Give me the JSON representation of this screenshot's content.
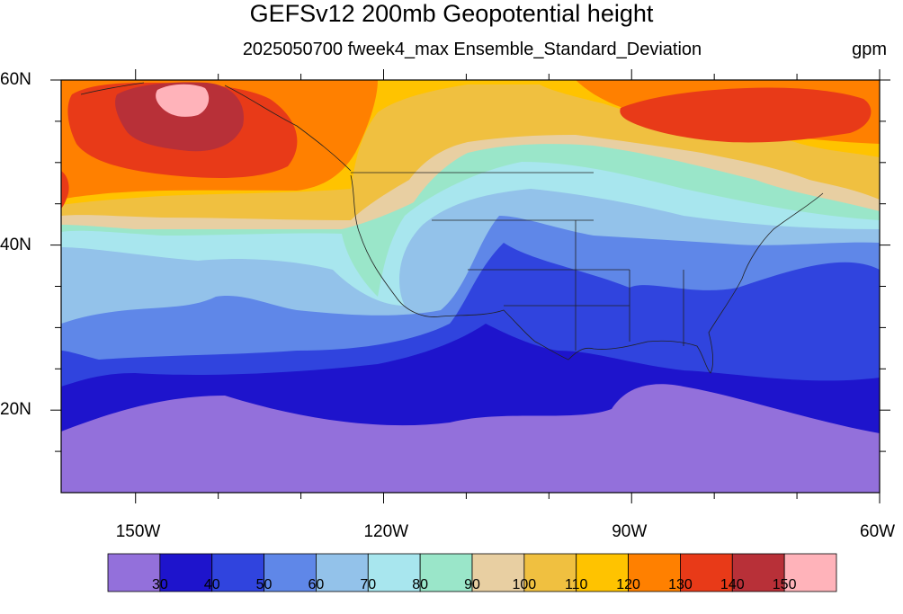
{
  "title": "GEFSv12 200mb Geopotential height",
  "subtitle": "2025050700 fweek4_max Ensemble_Standard_Deviation",
  "units": "gpm",
  "lat_labels": [
    {
      "text": "60N",
      "lat": 60
    },
    {
      "text": "40N",
      "lat": 40
    },
    {
      "text": "20N",
      "lat": 20
    }
  ],
  "lon_labels": [
    {
      "text": "150W",
      "lon": -150
    },
    {
      "text": "120W",
      "lon": -120
    },
    {
      "text": "90W",
      "lon": -90
    },
    {
      "text": "60W",
      "lon": -60
    }
  ],
  "colorbar": {
    "colors": [
      "#9370DB",
      "#1E14CC",
      "#3044DE",
      "#5F87E8",
      "#93C2EA",
      "#A8E6EE",
      "#9AE6C9",
      "#E8CFA2",
      "#F0C040",
      "#FFC300",
      "#FF8000",
      "#E83A18",
      "#B83038",
      "#FFB3BA"
    ],
    "labels": [
      "30",
      "40",
      "50",
      "60",
      "70",
      "80",
      "90",
      "100",
      "110",
      "120",
      "130",
      "140",
      "150"
    ]
  },
  "map_extent": {
    "lon_min": -159,
    "lon_max": -60,
    "lat_min": 10,
    "lat_max": 60
  }
}
